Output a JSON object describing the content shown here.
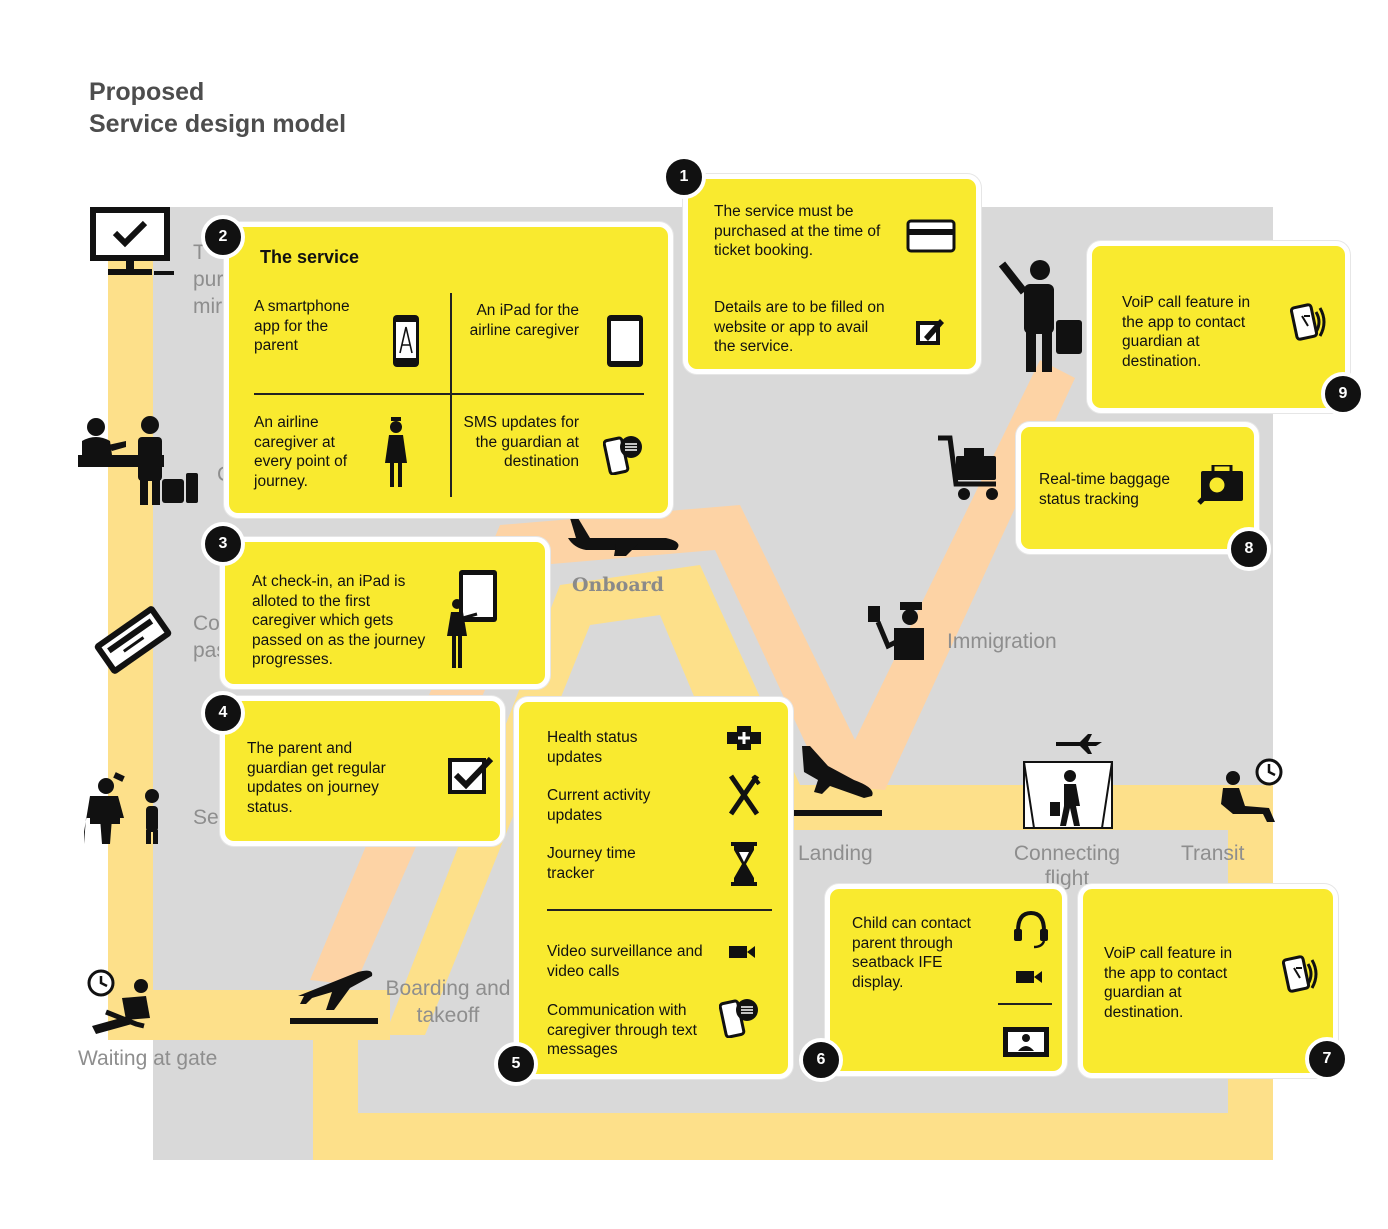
{
  "title": {
    "line1": "Proposed",
    "line2": "Service design model"
  },
  "journey": {
    "check_label_1": "T",
    "check_label_2": "pur",
    "check_label_3": "mir",
    "counter_label": "C",
    "passport_label_1": "Co",
    "passport_label_2": "pas",
    "security_label": "Se",
    "waiting": "Waiting at gate",
    "boarding_1": "Boarding and",
    "boarding_2": "takeoff",
    "onboard": "Onboard",
    "landing": "Landing",
    "connecting_1": "Connecting",
    "connecting_2": "flight",
    "transit": "Transit",
    "immigration": "Immigration"
  },
  "cards": {
    "c1": {
      "badge": "1",
      "text1": "The service must be purchased at the time of ticket booking.",
      "text2": "Details are to be filled on website or app to avail the service.",
      "icon1": "credit-card-icon",
      "icon2": "edit-form-icon"
    },
    "c2": {
      "badge": "2",
      "heading": "The service",
      "q1": "A smartphone app for the parent",
      "q2": "An iPad for the airline caregiver",
      "q3": "An airline caregiver at every point of journey.",
      "q4": "SMS updates for the guardian at destination"
    },
    "c3": {
      "badge": "3",
      "text": "At check-in, an iPad is alloted to the first caregiver which gets passed on as the journey progresses."
    },
    "c4": {
      "badge": "4",
      "text": "The parent and guardian get regular updates on journey status."
    },
    "c5": {
      "badge": "5",
      "i1": "Health status updates",
      "i2": "Current activity updates",
      "i3": "Journey time tracker",
      "i4": "Video surveillance and video calls",
      "i5": "Communication with caregiver through text messages"
    },
    "c6": {
      "badge": "6",
      "text": "Child can contact parent through seatback IFE display."
    },
    "c7": {
      "badge": "7",
      "text": "VoiP call feature in the app to contact guardian at destination."
    },
    "c8": {
      "badge": "8",
      "text": "Real-time baggage status tracking"
    },
    "c9": {
      "badge": "9",
      "text": "VoiP call feature in the app to contact guardian at destination."
    }
  },
  "colors": {
    "card": "#f9ea2f",
    "path_yellow": "#fde08a",
    "path_peach": "#fdd3a5",
    "area_gray": "#d9d9d9",
    "badge": "#111111"
  }
}
